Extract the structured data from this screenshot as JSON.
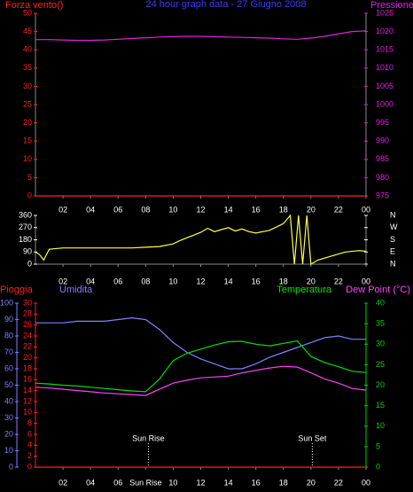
{
  "chart_data": [
    {
      "type": "line",
      "title": "24 hour graph data - 27 Giugno 2008",
      "title_color": "#3c3cff",
      "x": [
        0,
        1,
        2,
        3,
        4,
        5,
        6,
        7,
        8,
        9,
        10,
        11,
        12,
        13,
        14,
        15,
        16,
        17,
        18,
        19,
        20,
        21,
        22,
        23,
        24
      ],
      "xlim": [
        0,
        24
      ],
      "xticks": [
        {
          "value": 2,
          "label": "02"
        },
        {
          "value": 4,
          "label": "04"
        },
        {
          "value": 6,
          "label": "06"
        },
        {
          "value": 8,
          "label": "08"
        },
        10,
        12,
        14,
        16,
        18,
        20,
        22,
        {
          "value": 24,
          "label": "00"
        }
      ],
      "ylim": [
        0,
        50
      ],
      "yticks": [
        0,
        5,
        10,
        15,
        20,
        25,
        30,
        35,
        40,
        45,
        50
      ],
      "y_color": "#ff2020",
      "y2lim": [
        975,
        1025
      ],
      "y2ticks": [
        975,
        980,
        985,
        990,
        995,
        1000,
        1005,
        1010,
        1015,
        1020,
        1025
      ],
      "y2_color": "#e020e0",
      "series": [
        {
          "name": "Forza vento()",
          "color": "#ff2020",
          "values": [
            0,
            0,
            0,
            0,
            0,
            0,
            0,
            0,
            0,
            0,
            0,
            0,
            0,
            0,
            0,
            0,
            0,
            0,
            0,
            0,
            0,
            0,
            0,
            0,
            0
          ]
        },
        {
          "name": "Pressione",
          "color": "#e020e0",
          "axis": "y2",
          "values": [
            1017.8,
            1017.8,
            1017.7,
            1017.6,
            1017.6,
            1017.7,
            1017.9,
            1018.1,
            1018.3,
            1018.5,
            1018.6,
            1018.7,
            1018.7,
            1018.6,
            1018.5,
            1018.4,
            1018.3,
            1018.2,
            1018.0,
            1017.9,
            1018.2,
            1018.7,
            1019.4,
            1020.0,
            1020.2
          ]
        }
      ]
    },
    {
      "type": "line",
      "x": [
        0,
        0.3,
        0.6,
        1,
        2,
        3,
        4,
        5,
        6,
        7,
        8,
        9,
        10,
        10.5,
        11,
        11.5,
        12,
        12.5,
        13,
        13.5,
        14,
        14.5,
        15,
        15.5,
        16,
        17,
        18,
        18.5,
        18.8,
        19.1,
        19.4,
        19.7,
        20,
        20.5,
        21.5,
        22.5,
        23.5,
        24
      ],
      "xlim": [
        0,
        24
      ],
      "xticks": [
        {
          "value": 2,
          "label": "02"
        },
        {
          "value": 4,
          "label": "04"
        },
        {
          "value": 6,
          "label": "06"
        },
        {
          "value": 8,
          "label": "08"
        },
        10,
        12,
        14,
        16,
        18,
        20,
        22,
        {
          "value": 24,
          "label": "00"
        }
      ],
      "ylim": [
        0,
        360
      ],
      "yticks": [
        0,
        90,
        180,
        270,
        360
      ],
      "y_color": "#ffffff",
      "y2lim": [
        0,
        360
      ],
      "y2ticks": [
        {
          "value": 0,
          "label": "N"
        },
        {
          "value": 90,
          "label": "E"
        },
        {
          "value": 180,
          "label": "S"
        },
        {
          "value": 270,
          "label": "W"
        },
        {
          "value": 360,
          "label": "N"
        }
      ],
      "y2_color": "#ffffff",
      "series": [
        {
          "color": "#ffff40",
          "values": [
            90,
            70,
            30,
            110,
            120,
            120,
            120,
            120,
            120,
            120,
            125,
            130,
            150,
            175,
            195,
            215,
            235,
            265,
            240,
            255,
            270,
            245,
            260,
            240,
            230,
            250,
            300,
            360,
            0,
            360,
            0,
            360,
            0,
            30,
            60,
            90,
            100,
            95
          ]
        }
      ]
    },
    {
      "type": "line",
      "x": [
        0,
        1,
        2,
        3,
        4,
        5,
        6,
        7,
        8,
        9,
        10,
        11,
        12,
        13,
        14,
        15,
        16,
        17,
        18,
        19,
        20,
        21,
        22,
        23,
        24
      ],
      "xlim": [
        0,
        24
      ],
      "xticks": [
        {
          "value": 2,
          "label": "02"
        },
        {
          "value": 4,
          "label": "04"
        },
        {
          "value": 6,
          "label": "06"
        },
        {
          "value": 8,
          "label": "Sun Rise"
        },
        10,
        12,
        14,
        16,
        18,
        20,
        22,
        {
          "value": 24,
          "label": "00"
        }
      ],
      "ylim": [
        0,
        100
      ],
      "yticks": [
        0,
        10,
        20,
        30,
        40,
        50,
        60,
        70,
        80,
        90,
        100
      ],
      "y_color": "#8080ff",
      "y2lim": [
        0,
        40
      ],
      "y2ticks": [
        0,
        5,
        10,
        15,
        20,
        25,
        30,
        35,
        40
      ],
      "y2_color": "#00d000",
      "y3lim": [
        0,
        30
      ],
      "y3ticks": [
        0,
        2,
        4,
        6,
        8,
        10,
        12,
        14,
        16,
        18,
        20,
        22,
        24,
        26,
        28,
        30
      ],
      "y3_color": "#ff2020",
      "markers": [
        {
          "label": "Sun Rise",
          "x": 8.2
        },
        {
          "label": "Sun Set",
          "x": 20.1
        }
      ],
      "series": [
        {
          "name": "Pioggia",
          "color": "#ff2020",
          "axis": "y3",
          "values": [
            0,
            0,
            0,
            0,
            0,
            0,
            0,
            0,
            0,
            0,
            0,
            0,
            0,
            0,
            0,
            0,
            0,
            0,
            0,
            0,
            0,
            0,
            0,
            0,
            0
          ]
        },
        {
          "name": "Umidita",
          "color": "#8080ff",
          "values": [
            88,
            88,
            88,
            89,
            89,
            89,
            90,
            91,
            90,
            84,
            76,
            70,
            66,
            63,
            60,
            60,
            63,
            67,
            70,
            73,
            76,
            79,
            80,
            78,
            78
          ]
        },
        {
          "name": "Temperatura",
          "color": "#00e000",
          "axis": "y2",
          "values": [
            20.5,
            20.3,
            20.0,
            19.8,
            19.5,
            19.2,
            18.9,
            18.6,
            18.4,
            21.5,
            26.0,
            27.8,
            28.8,
            29.8,
            30.6,
            30.7,
            30.0,
            29.6,
            30.2,
            30.8,
            27.0,
            25.5,
            24.5,
            23.4,
            23.1
          ]
        },
        {
          "name": "Dew Point (°C)",
          "color": "#ff40ff",
          "axis": "y2",
          "values": [
            19.5,
            19.3,
            19.0,
            18.7,
            18.4,
            18.1,
            17.9,
            17.7,
            17.5,
            19.0,
            20.5,
            21.2,
            21.8,
            22.0,
            22.2,
            23.0,
            23.6,
            24.2,
            24.6,
            24.4,
            23.0,
            21.5,
            20.5,
            19.2,
            18.8
          ]
        }
      ]
    }
  ]
}
